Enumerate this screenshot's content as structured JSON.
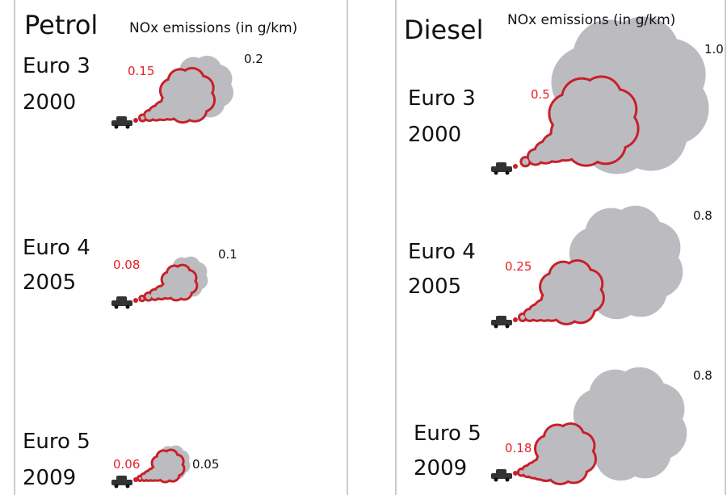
{
  "panels": [
    {
      "title": "Petrol",
      "subtitle": "NOx emissions (in g/km)",
      "rows": [
        {
          "standard": "Euro 3",
          "year": "2000",
          "red_value": "0.15",
          "grey_value": "0.2"
        },
        {
          "standard": "Euro 4",
          "year": "2005",
          "red_value": "0.08",
          "grey_value": "0.1"
        },
        {
          "standard": "Euro 5",
          "year": "2009",
          "red_value": "0.06",
          "grey_value": "0.05"
        }
      ]
    },
    {
      "title": "Diesel",
      "subtitle": "NOx emissions (in g/km)",
      "rows": [
        {
          "standard": "Euro 3",
          "year": "2000",
          "red_value": "0.5",
          "grey_value": "1.0"
        },
        {
          "standard": "Euro 4",
          "year": "2005",
          "red_value": "0.25",
          "grey_value": "0.8"
        },
        {
          "standard": "Euro 5",
          "year": "2009",
          "red_value": "0.18",
          "grey_value": "0.8"
        }
      ]
    }
  ]
}
